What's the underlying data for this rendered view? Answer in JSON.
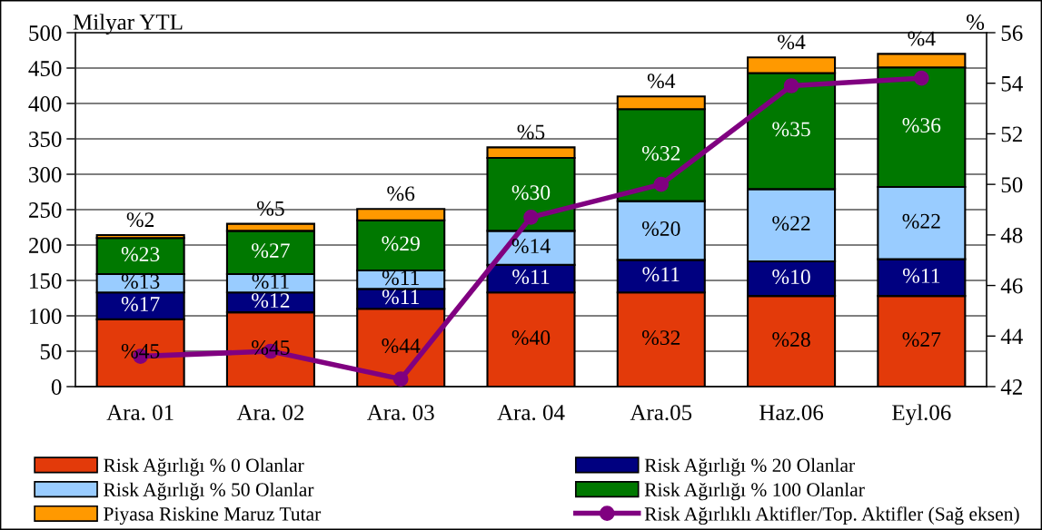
{
  "chart_data": {
    "type": "bar",
    "stacked": true,
    "ylabel": "Milyar YTL",
    "y2label": "%",
    "categories": [
      "Ara. 01",
      "Ara. 02",
      "Ara. 03",
      "Ara. 04",
      "Ara.05",
      "Haz.06",
      "Eyl.06"
    ],
    "series": [
      {
        "name": "Risk Ağırlığı % 0 Olanlar",
        "color": "#e33a0a",
        "values": [
          95,
          105,
          110,
          133,
          133,
          128,
          128
        ]
      },
      {
        "name": "Risk Ağırlığı % 20 Olanlar",
        "color": "#000080",
        "values": [
          38,
          28,
          28,
          39,
          46,
          49,
          52
        ]
      },
      {
        "name": "Risk Ağırlığı % 50 Olanlar",
        "color": "#99ccff",
        "values": [
          26,
          26,
          26,
          48,
          83,
          102,
          102
        ]
      },
      {
        "name": "Risk Ağırlığı % 100 Olanlar",
        "color": "#007800",
        "values": [
          51,
          61,
          71,
          103,
          130,
          164,
          169
        ]
      },
      {
        "name": "Piyasa Riskine Maruz Tutar",
        "color": "#ff9900",
        "values": [
          4,
          10,
          16,
          15,
          18,
          22,
          19
        ]
      },
      {
        "name": "Risk Ağırlıklı Aktifler/Top. Aktifler (Sağ eksen)",
        "type": "line",
        "axis": "y2",
        "color": "#800080",
        "marker": "circle",
        "line_style": "solid",
        "values": [
          43.2,
          43.4,
          42.3,
          48.7,
          50.0,
          53.9,
          54.2
        ]
      }
    ],
    "annotations": [
      {
        "text": "%45",
        "x": "Ara. 01",
        "y": 95
      },
      {
        "text": "%17",
        "x": "Ara. 01",
        "y": 133
      },
      {
        "text": "%13",
        "x": "Ara. 01",
        "y": 159
      },
      {
        "text": "%23",
        "x": "Ara. 01",
        "y": 210
      },
      {
        "text": "%2",
        "x": "Ara. 01",
        "y": 214
      },
      {
        "text": "%45",
        "x": "Ara. 02",
        "y": 105
      },
      {
        "text": "%12",
        "x": "Ara. 02",
        "y": 133
      },
      {
        "text": "%11",
        "x": "Ara. 02",
        "y": 159
      },
      {
        "text": "%27",
        "x": "Ara. 02",
        "y": 220
      },
      {
        "text": "%5",
        "x": "Ara. 02",
        "y": 230
      },
      {
        "text": "%44",
        "x": "Ara. 03",
        "y": 110
      },
      {
        "text": "%11",
        "x": "Ara. 03",
        "y": 138
      },
      {
        "text": "%11",
        "x": "Ara. 03",
        "y": 164
      },
      {
        "text": "%29",
        "x": "Ara. 03",
        "y": 235
      },
      {
        "text": "%6",
        "x": "Ara. 03",
        "y": 251
      },
      {
        "text": "%40",
        "x": "Ara. 04",
        "y": 133
      },
      {
        "text": "%11",
        "x": "Ara. 04",
        "y": 172
      },
      {
        "text": "%14",
        "x": "Ara. 04",
        "y": 220
      },
      {
        "text": "%30",
        "x": "Ara. 04",
        "y": 323
      },
      {
        "text": "%5",
        "x": "Ara. 04",
        "y": 338
      },
      {
        "text": "%32",
        "x": "Ara.05",
        "y": 133
      },
      {
        "text": "%11",
        "x": "Ara.05",
        "y": 179
      },
      {
        "text": "%20",
        "x": "Ara.05",
        "y": 262
      },
      {
        "text": "%32",
        "x": "Ara.05",
        "y": 392
      },
      {
        "text": "%4",
        "x": "Ara.05",
        "y": 410
      },
      {
        "text": "%28",
        "x": "Haz.06",
        "y": 128
      },
      {
        "text": "%10",
        "x": "Haz.06",
        "y": 177
      },
      {
        "text": "%22",
        "x": "Haz.06",
        "y": 279
      },
      {
        "text": "%35",
        "x": "Haz.06",
        "y": 443
      },
      {
        "text": "%4",
        "x": "Haz.06",
        "y": 465
      },
      {
        "text": "%27",
        "x": "Eyl.06",
        "y": 128
      },
      {
        "text": "%11",
        "x": "Eyl.06",
        "y": 180
      },
      {
        "text": "%22",
        "x": "Eyl.06",
        "y": 282
      },
      {
        "text": "%36",
        "x": "Eyl.06",
        "y": 451
      },
      {
        "text": "%4",
        "x": "Eyl.06",
        "y": 470
      }
    ],
    "ylim": [
      0,
      500
    ],
    "yticks": [
      0,
      50,
      100,
      150,
      200,
      250,
      300,
      350,
      400,
      450,
      500
    ],
    "y2lim": [
      42,
      56
    ],
    "y2ticks": [
      42,
      44,
      46,
      48,
      50,
      52,
      54,
      56
    ],
    "grid": "y",
    "legend": "bottom"
  }
}
